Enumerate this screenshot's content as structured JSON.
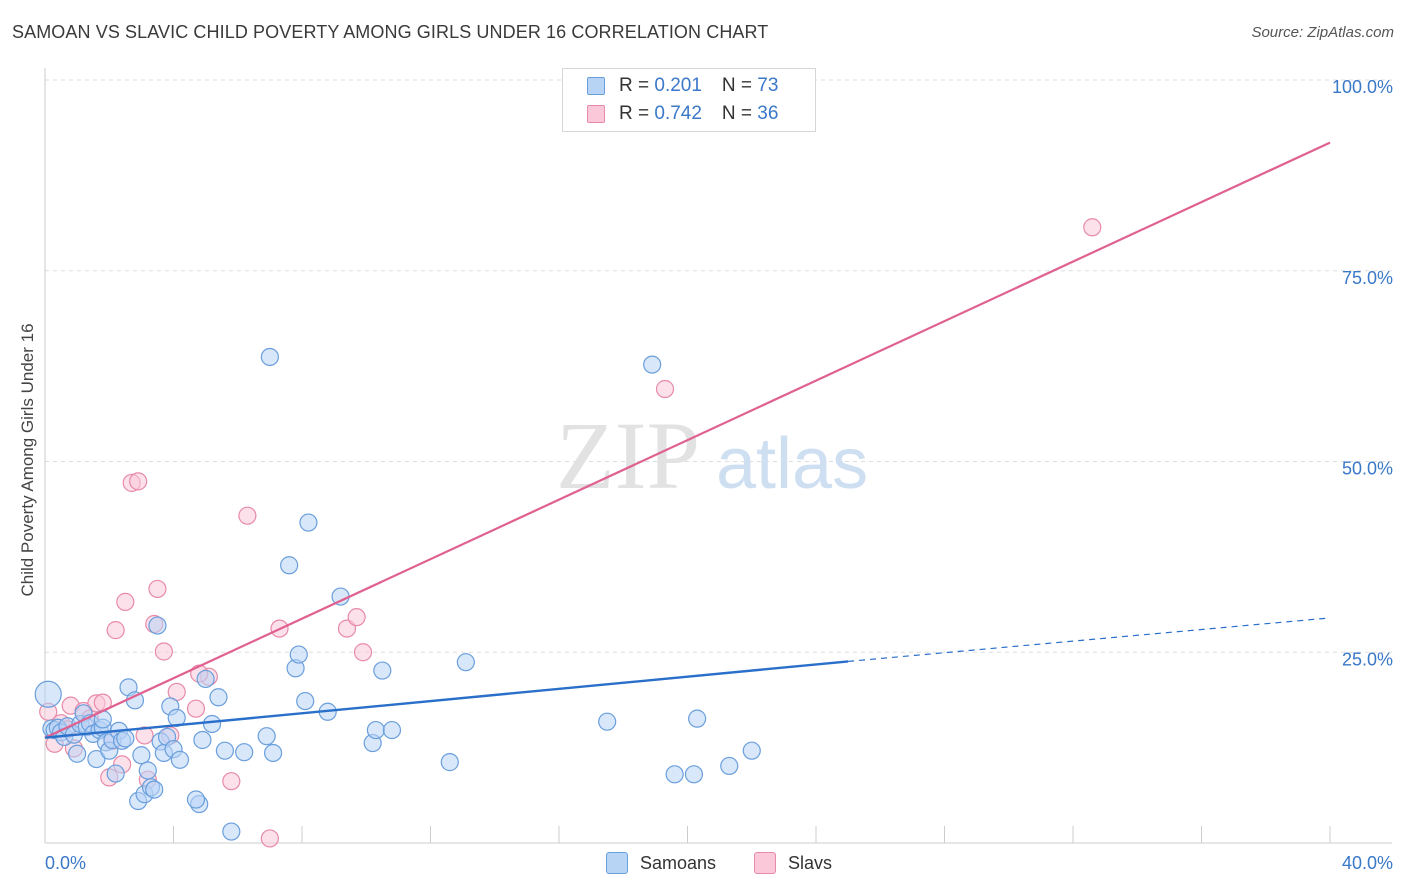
{
  "header": {
    "title": "SAMOAN VS SLAVIC CHILD POVERTY AMONG GIRLS UNDER 16 CORRELATION CHART",
    "source": "Source: ZipAtlas.com"
  },
  "legend_top": {
    "rows": [
      {
        "r_label": "R = ",
        "r_value": "0.201",
        "n_label": "N = ",
        "n_value": "73"
      },
      {
        "r_label": "R = ",
        "r_value": "0.742",
        "n_label": "N = ",
        "n_value": "36"
      }
    ]
  },
  "legend_bottom": {
    "items": [
      "Samoans",
      "Slavs"
    ]
  },
  "watermark": {
    "zip": "ZIP",
    "atlas": "atlas"
  },
  "colors": {
    "samoans_fill": "#b8d4f5",
    "samoans_stroke": "#6a9fdc",
    "samoans_line": "#2a6fc9",
    "slavs_fill": "#fac8d8",
    "slavs_stroke": "#e88aa8",
    "slavs_line": "#e06090",
    "tick_label": "#3a78c8",
    "grid": "#dddddd"
  },
  "chart_data": {
    "type": "scatter",
    "title": "SAMOAN VS SLAVIC CHILD POVERTY AMONG GIRLS UNDER 16 CORRELATION CHART",
    "xlabel": "",
    "ylabel": "Child Poverty Among Girls Under 16",
    "xlim": [
      0,
      40
    ],
    "ylim": [
      0,
      100
    ],
    "x_tick_labels": [
      "0.0%",
      "40.0%"
    ],
    "y_ticks": [
      25,
      50,
      75,
      100
    ],
    "y_tick_labels": [
      "25.0%",
      "50.0%",
      "75.0%",
      "100.0%"
    ],
    "grid": "horizontal dashed",
    "legend": "top-center",
    "series": [
      {
        "name": "Samoans",
        "r": 0.201,
        "n": 73,
        "trend": {
          "x": [
            0,
            25
          ],
          "y": [
            13.8,
            23.8
          ]
        },
        "trend_dashed": {
          "x": [
            25,
            40
          ],
          "y": [
            23.8,
            29.5
          ]
        },
        "points": [
          [
            0.1,
            19.5
          ],
          [
            0.2,
            15.0
          ],
          [
            0.3,
            14.8
          ],
          [
            0.4,
            15.1
          ],
          [
            0.5,
            14.5
          ],
          [
            0.6,
            13.9
          ],
          [
            0.7,
            15.3
          ],
          [
            0.9,
            14.2
          ],
          [
            1.0,
            11.7
          ],
          [
            1.1,
            15.6
          ],
          [
            1.2,
            17.0
          ],
          [
            1.3,
            15.2
          ],
          [
            1.4,
            15.7
          ],
          [
            1.5,
            14.3
          ],
          [
            1.6,
            11.0
          ],
          [
            1.7,
            14.8
          ],
          [
            1.8,
            15.1
          ],
          [
            1.9,
            13.2
          ],
          [
            2.0,
            12.1
          ],
          [
            2.1,
            13.5
          ],
          [
            2.2,
            9.1
          ],
          [
            2.3,
            14.7
          ],
          [
            2.4,
            13.4
          ],
          [
            2.5,
            13.7
          ],
          [
            2.6,
            20.4
          ],
          [
            2.8,
            18.7
          ],
          [
            2.9,
            5.5
          ],
          [
            3.0,
            11.5
          ],
          [
            3.1,
            6.4
          ],
          [
            3.2,
            9.5
          ],
          [
            3.3,
            7.3
          ],
          [
            3.4,
            7.0
          ],
          [
            3.5,
            28.5
          ],
          [
            3.6,
            13.3
          ],
          [
            3.7,
            11.8
          ],
          [
            3.8,
            13.9
          ],
          [
            3.9,
            17.9
          ],
          [
            4.0,
            12.3
          ],
          [
            4.1,
            16.4
          ],
          [
            4.2,
            10.9
          ],
          [
            4.8,
            5.1
          ],
          [
            4.9,
            13.5
          ],
          [
            5.0,
            21.5
          ],
          [
            5.2,
            15.6
          ],
          [
            5.4,
            19.1
          ],
          [
            5.6,
            12.1
          ],
          [
            5.8,
            1.5
          ],
          [
            6.2,
            11.9
          ],
          [
            6.9,
            14.0
          ],
          [
            7.0,
            63.7
          ],
          [
            7.1,
            11.8
          ],
          [
            7.6,
            36.4
          ],
          [
            7.8,
            22.9
          ],
          [
            7.9,
            24.7
          ],
          [
            8.1,
            18.6
          ],
          [
            8.2,
            42.0
          ],
          [
            8.8,
            17.2
          ],
          [
            9.2,
            32.3
          ],
          [
            10.2,
            13.1
          ],
          [
            10.3,
            14.8
          ],
          [
            10.5,
            22.6
          ],
          [
            10.8,
            14.8
          ],
          [
            12.6,
            10.6
          ],
          [
            13.1,
            23.7
          ],
          [
            17.5,
            15.9
          ],
          [
            18.9,
            62.7
          ],
          [
            19.6,
            9.0
          ],
          [
            20.2,
            9.0
          ],
          [
            20.3,
            16.3
          ],
          [
            21.3,
            10.1
          ],
          [
            22.0,
            12.1
          ],
          [
            4.7,
            5.7
          ],
          [
            1.8,
            16.2
          ]
        ]
      },
      {
        "name": "Slavs",
        "r": 0.742,
        "n": 36,
        "trend": {
          "x": [
            0,
            40
          ],
          "y": [
            13.8,
            91.8
          ]
        },
        "points": [
          [
            0.1,
            17.2
          ],
          [
            0.3,
            13.0
          ],
          [
            0.5,
            15.7
          ],
          [
            0.7,
            14.9
          ],
          [
            0.8,
            18.0
          ],
          [
            0.9,
            12.4
          ],
          [
            1.2,
            17.3
          ],
          [
            1.4,
            16.3
          ],
          [
            1.6,
            18.3
          ],
          [
            1.8,
            18.4
          ],
          [
            2.0,
            8.6
          ],
          [
            2.1,
            13.4
          ],
          [
            2.2,
            27.9
          ],
          [
            2.4,
            10.3
          ],
          [
            2.5,
            31.6
          ],
          [
            2.7,
            47.2
          ],
          [
            2.9,
            47.4
          ],
          [
            3.1,
            14.1
          ],
          [
            3.2,
            8.3
          ],
          [
            3.4,
            28.7
          ],
          [
            3.5,
            33.3
          ],
          [
            3.7,
            25.1
          ],
          [
            3.9,
            14.1
          ],
          [
            4.1,
            19.8
          ],
          [
            4.7,
            17.6
          ],
          [
            5.1,
            21.8
          ],
          [
            5.8,
            8.1
          ],
          [
            6.3,
            42.9
          ],
          [
            7.0,
            0.6
          ],
          [
            7.3,
            28.1
          ],
          [
            9.4,
            28.1
          ],
          [
            9.7,
            29.6
          ],
          [
            9.9,
            25.0
          ],
          [
            19.3,
            59.5
          ],
          [
            32.6,
            80.7
          ],
          [
            4.8,
            22.2
          ]
        ]
      }
    ]
  }
}
